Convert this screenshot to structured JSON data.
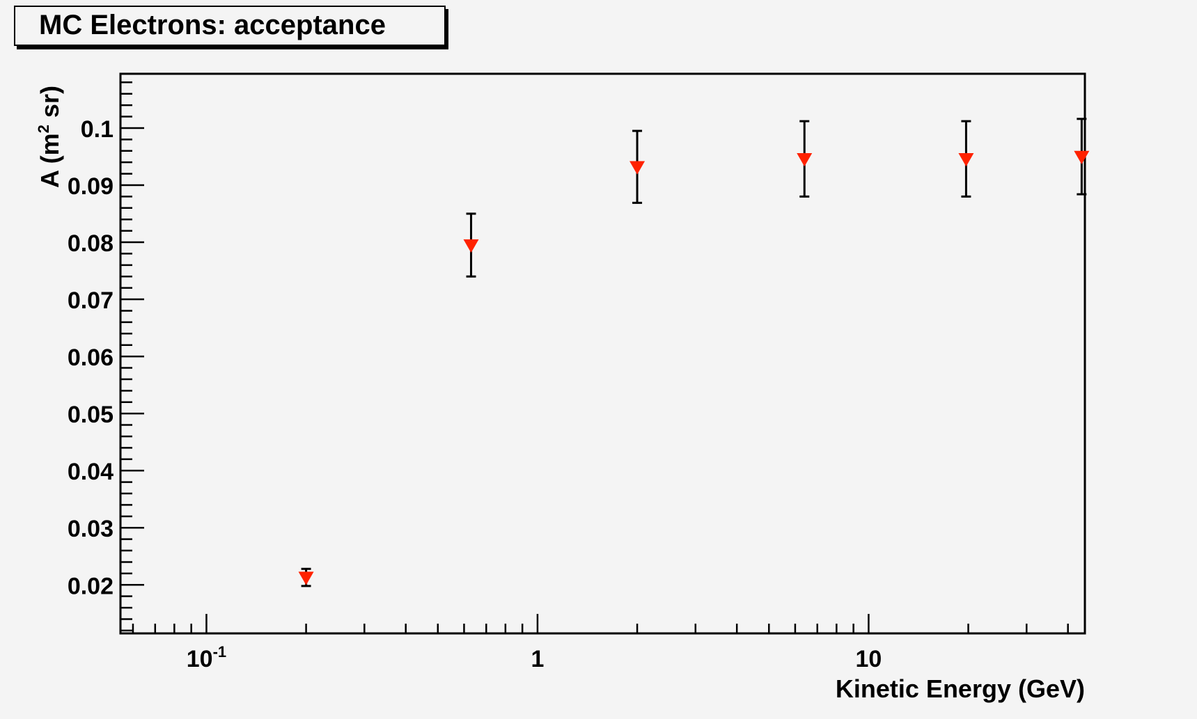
{
  "chart_data": {
    "type": "scatter",
    "title": "MC Electrons: acceptance",
    "xlabel": "Kinetic Energy (GeV)",
    "ylabel_main": "A (m",
    "ylabel_sup": "2",
    "ylabel_tail": " sr)",
    "x_scale": "log",
    "xlim": [
      0.055,
      45
    ],
    "ylim": [
      0.0115,
      0.1095
    ],
    "x_ticks": [
      {
        "value": 0.1,
        "base": "10",
        "exp": "-1"
      },
      {
        "value": 1,
        "base": "1",
        "exp": ""
      },
      {
        "value": 10,
        "base": "10",
        "exp": ""
      }
    ],
    "y_ticks": [
      {
        "value": 0.02,
        "label": "0.02"
      },
      {
        "value": 0.03,
        "label": "0.03"
      },
      {
        "value": 0.04,
        "label": "0.04"
      },
      {
        "value": 0.05,
        "label": "0.05"
      },
      {
        "value": 0.06,
        "label": "0.06"
      },
      {
        "value": 0.07,
        "label": "0.07"
      },
      {
        "value": 0.08,
        "label": "0.08"
      },
      {
        "value": 0.09,
        "label": "0.09"
      },
      {
        "value": 0.1,
        "label": "0.1"
      }
    ],
    "grid": false,
    "marker_color": "#ff2200",
    "points": [
      {
        "x": 0.2,
        "y": 0.0213,
        "yerr": 0.0015
      },
      {
        "x": 0.63,
        "y": 0.0795,
        "yerr": 0.0055
      },
      {
        "x": 2.0,
        "y": 0.0932,
        "yerr": 0.0063
      },
      {
        "x": 6.4,
        "y": 0.0946,
        "yerr": 0.0066
      },
      {
        "x": 19.7,
        "y": 0.0946,
        "yerr": 0.0066
      },
      {
        "x": 44,
        "y": 0.095,
        "yerr": 0.0066
      }
    ]
  }
}
